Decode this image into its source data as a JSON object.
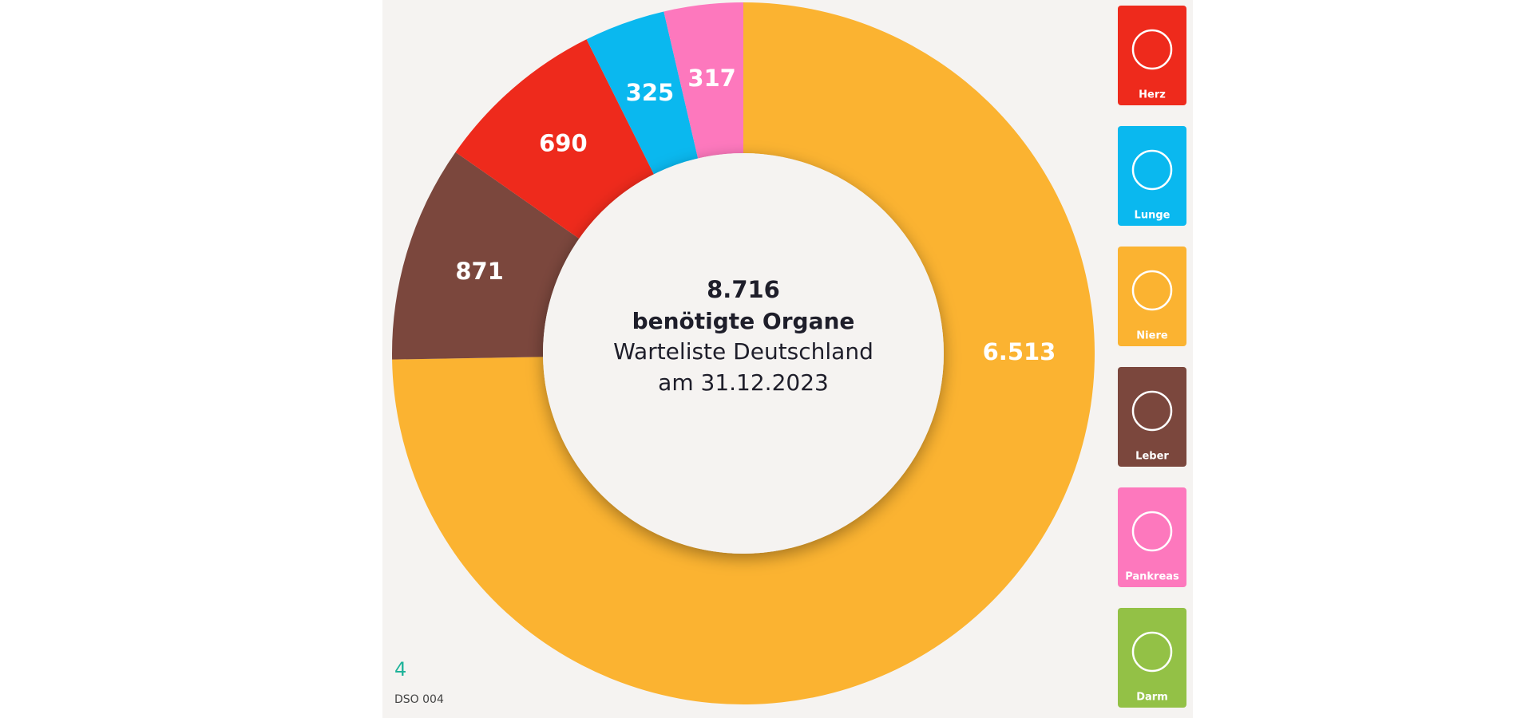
{
  "chart_data": {
    "type": "donut",
    "categories": [
      "Niere",
      "Leber",
      "Herz",
      "Lunge",
      "Pankreas"
    ],
    "values": [
      6513,
      871,
      690,
      325,
      317
    ],
    "value_labels": [
      "6.513",
      "871",
      "690",
      "325",
      "317"
    ],
    "colors": [
      "#fbb331",
      "#7b473d",
      "#ee2a1c",
      "#0ab8ef",
      "#fd78bd"
    ],
    "center_value": {
      "value": 8716,
      "label": "8.716"
    },
    "center_title": "benötigte Organe",
    "center_subtitle": "Warteliste Deutschland",
    "center_date": "am 31.12.2023",
    "legend": [
      {
        "name": "Herz",
        "color": "#ee2a1c"
      },
      {
        "name": "Lunge",
        "color": "#0ab8ef"
      },
      {
        "name": "Niere",
        "color": "#fbb331"
      },
      {
        "name": "Leber",
        "color": "#7b473d"
      },
      {
        "name": "Pankreas",
        "color": "#fd78bd"
      },
      {
        "name": "Darm",
        "color": "#93c146"
      }
    ],
    "page_number": "4",
    "footer": "DSO 004"
  }
}
